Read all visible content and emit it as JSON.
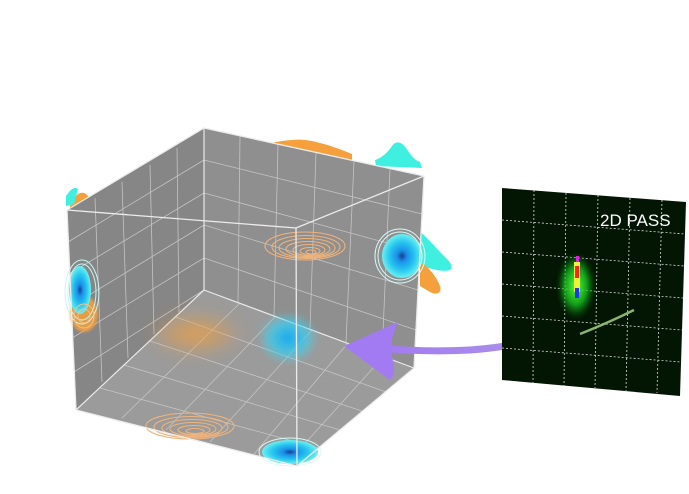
{
  "figure": {
    "pass_label": "2D PASS",
    "colors": {
      "cube_wall": "#8a8a8a",
      "cube_floor": "#9a9a9a",
      "cube_edge": "#e4e4e4",
      "grid_line": "#c8c8c8",
      "orange": "#f5a03c",
      "cyan": "#36e8e0",
      "blue_blob": "#18a8f0",
      "contour_orange": "#f0b37a",
      "contour_cyan": "#bff5f0",
      "arrow": "#a77ff0",
      "arrow_tail": "#9ac47a",
      "panel_bg": "#031503",
      "panel_grid": "#ffffff",
      "green_signal": "#1aef2a"
    }
  }
}
